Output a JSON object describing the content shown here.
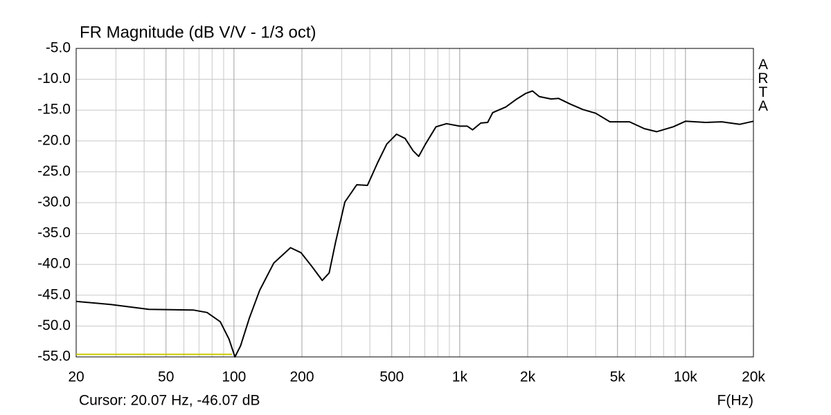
{
  "chart_data": {
    "type": "line",
    "title": "FR Magnitude (dB V/V - 1/3 oct)",
    "watermark": "ARTA",
    "cursor_text": "Cursor: 20.07 Hz, -46.07 dB",
    "x_label": "F(Hz)",
    "log_x": true,
    "grid": true,
    "xlim": [
      20,
      20000
    ],
    "ylim": [
      -55,
      -5
    ],
    "xticks": [
      20,
      50,
      100,
      200,
      500,
      {
        "value": 1000,
        "label": "1k"
      },
      {
        "value": 2000,
        "label": "2k"
      },
      {
        "value": 5000,
        "label": "5k"
      },
      {
        "value": 10000,
        "label": "10k"
      },
      {
        "value": 20000,
        "label": "20k"
      }
    ],
    "x_minor_grid": [
      30,
      40,
      60,
      70,
      80,
      90,
      300,
      400,
      600,
      700,
      800,
      900,
      3000,
      4000,
      6000,
      7000,
      8000,
      9000
    ],
    "yticks": [
      {
        "value": -5,
        "label": "-5.0"
      },
      {
        "value": -10,
        "label": "-10.0"
      },
      {
        "value": -15,
        "label": "-15.0"
      },
      {
        "value": -20,
        "label": "-20.0"
      },
      {
        "value": -25,
        "label": "-25.0"
      },
      {
        "value": -30,
        "label": "-30.0"
      },
      {
        "value": -35,
        "label": "-35.0"
      },
      {
        "value": -40,
        "label": "-40.0"
      },
      {
        "value": -45,
        "label": "-45.0"
      },
      {
        "value": -50,
        "label": "-50.0"
      },
      {
        "value": -55,
        "label": "-55.0"
      }
    ],
    "x": [
      20,
      28.5,
      42,
      66,
      76,
      87,
      95,
      101,
      107,
      117,
      130,
      150,
      178,
      198,
      221,
      246,
      264,
      282,
      310,
      350,
      390,
      433,
      475,
      525,
      573,
      622,
      658,
      705,
      785,
      874,
      1000,
      1080,
      1140,
      1240,
      1330,
      1400,
      1600,
      1790,
      1960,
      2100,
      2250,
      2540,
      2740,
      3080,
      3510,
      4000,
      4630,
      5650,
      6570,
      7450,
      8830,
      10000,
      12300,
      14470,
      17400,
      20000
    ],
    "series": [
      {
        "color": "#000000",
        "values": [
          -46.0,
          -46.5,
          -47.3,
          -47.4,
          -47.8,
          -49.3,
          -52.1,
          -55.0,
          -53.2,
          -48.7,
          -44.2,
          -39.8,
          -37.3,
          -38.1,
          -40.3,
          -42.6,
          -41.4,
          -36.4,
          -29.9,
          -27.1,
          -27.2,
          -23.5,
          -20.5,
          -18.9,
          -19.6,
          -21.6,
          -22.5,
          -20.5,
          -17.7,
          -17.2,
          -17.6,
          -17.6,
          -18.2,
          -17.1,
          -17.0,
          -15.4,
          -14.5,
          -13.2,
          -12.3,
          -11.9,
          -12.8,
          -13.2,
          -13.1,
          -14.0,
          -14.9,
          -15.5,
          -16.9,
          -16.9,
          -18.0,
          -18.5,
          -17.7,
          -16.8,
          -17.0,
          -16.9,
          -17.3,
          -16.8
        ]
      }
    ],
    "reference_line": {
      "x": [
        20,
        98
      ],
      "y": -54.6,
      "color": "#c8c800"
    }
  }
}
